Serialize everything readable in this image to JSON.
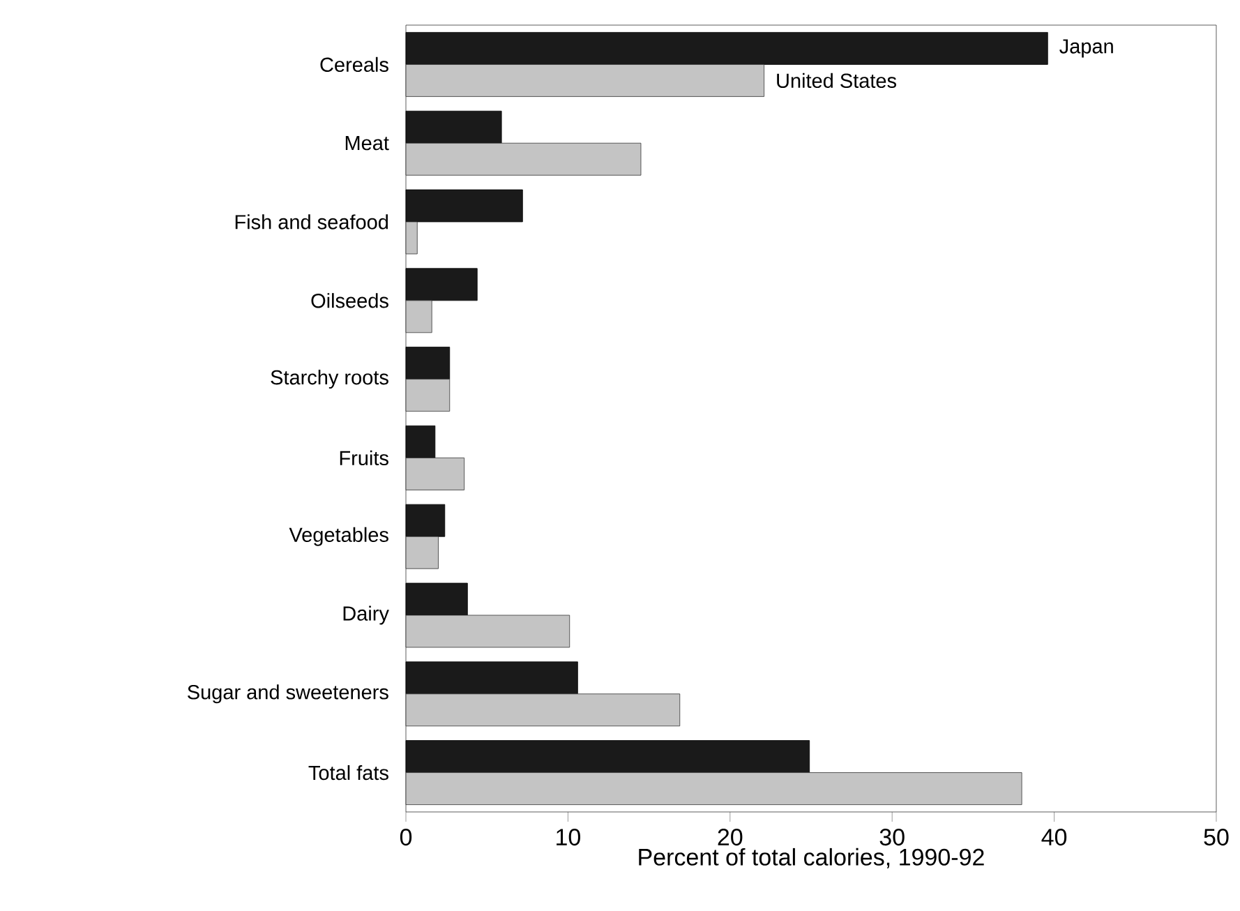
{
  "chart_data": {
    "type": "bar",
    "orientation": "horizontal",
    "xlabel": "Percent of total calories, 1990-92",
    "categories": [
      "Cereals",
      "Meat",
      "Fish and seafood",
      "Oilseeds",
      "Starchy roots",
      "Fruits",
      "Vegetables",
      "Dairy",
      "Sugar and sweeteners",
      "Total fats"
    ],
    "series": [
      {
        "name": "Japan",
        "color": "#1a1a1a",
        "values": [
          39.6,
          5.9,
          7.2,
          4.4,
          2.7,
          1.8,
          2.4,
          3.8,
          10.6,
          24.9
        ]
      },
      {
        "name": "United States",
        "color": "#c4c4c4",
        "values": [
          22.1,
          14.5,
          0.7,
          1.6,
          2.7,
          3.6,
          2.0,
          10.1,
          16.9,
          38.0
        ]
      }
    ],
    "xlim": [
      0,
      50
    ],
    "xticks": [
      0,
      10,
      20,
      30,
      40,
      50
    ]
  }
}
